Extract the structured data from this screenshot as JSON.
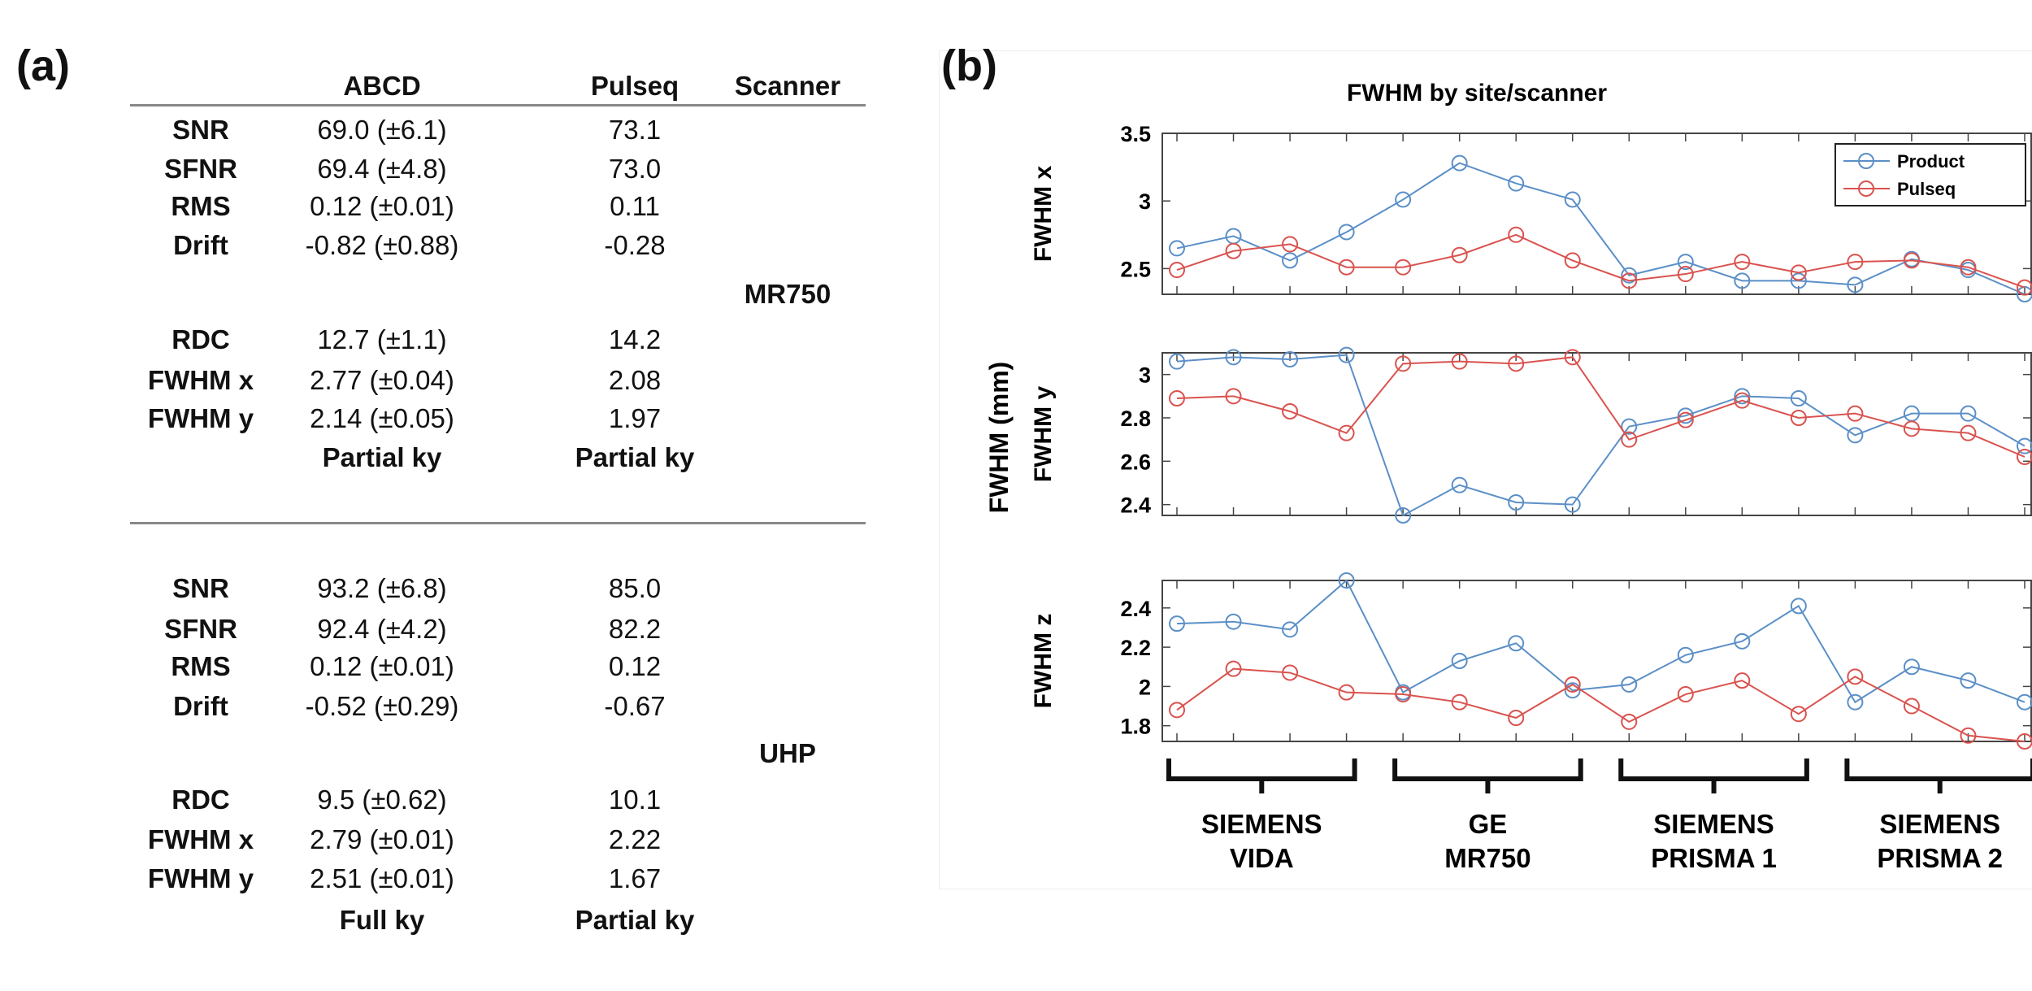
{
  "panel_a": {
    "label": "(a)",
    "headers": [
      "",
      "ABCD",
      "Pulseq",
      "Scanner"
    ],
    "sections": [
      {
        "scanner": "MR750",
        "rows_top": [
          {
            "metric": "SNR",
            "abcd": "69.0 (±6.1)",
            "pulseq": "73.1"
          },
          {
            "metric": "SFNR",
            "abcd": "69.4 (±4.8)",
            "pulseq": "73.0"
          },
          {
            "metric": "RMS",
            "abcd": "0.12 (±0.01)",
            "pulseq": "0.11"
          },
          {
            "metric": "Drift",
            "abcd": "-0.82 (±0.88)",
            "pulseq": "-0.28"
          }
        ],
        "rows_bottom": [
          {
            "metric": "RDC",
            "abcd": "12.7 (±1.1)",
            "pulseq": "14.2"
          },
          {
            "metric": "FWHM x",
            "abcd": "2.77 (±0.04)",
            "pulseq": "2.08"
          },
          {
            "metric": "FWHM y",
            "abcd": "2.14 (±0.05)",
            "pulseq": "1.97"
          }
        ],
        "sampling": {
          "abcd": "Partial ky",
          "pulseq": "Partial ky"
        }
      },
      {
        "scanner": "UHP",
        "rows_top": [
          {
            "metric": "SNR",
            "abcd": "93.2 (±6.8)",
            "pulseq": "85.0"
          },
          {
            "metric": "SFNR",
            "abcd": "92.4 (±4.2)",
            "pulseq": "82.2"
          },
          {
            "metric": "RMS",
            "abcd": "0.12 (±0.01)",
            "pulseq": "0.12"
          },
          {
            "metric": "Drift",
            "abcd": "-0.52 (±0.29)",
            "pulseq": "-0.67"
          }
        ],
        "rows_bottom": [
          {
            "metric": "RDC",
            "abcd": "9.5 (±0.62)",
            "pulseq": "10.1"
          },
          {
            "metric": "FWHM x",
            "abcd": "2.79 (±0.01)",
            "pulseq": "2.22"
          },
          {
            "metric": "FWHM y",
            "abcd": "2.51 (±0.01)",
            "pulseq": "1.67"
          }
        ],
        "sampling": {
          "abcd": "Full ky",
          "pulseq": "Partial ky"
        }
      }
    ]
  },
  "panel_b": {
    "label": "(b)"
  },
  "chart_data": {
    "type": "line",
    "title": "FWHM by site/scanner",
    "shared_ylabel": "FWHM (mm)",
    "colors": {
      "Product": "#5b8fc7",
      "Pulseq": "#d9534f"
    },
    "legend": {
      "position": "top-right",
      "entries": [
        "Product",
        "Pulseq"
      ]
    },
    "marker": "circle",
    "grid": false,
    "groups": [
      {
        "line1": "SIEMENS",
        "line2": "VIDA"
      },
      {
        "line1": "GE",
        "line2": "MR750"
      },
      {
        "line1": "SIEMENS",
        "line2": "PRISMA 1"
      },
      {
        "line1": "SIEMENS",
        "line2": "PRISMA 2"
      }
    ],
    "points_per_group": 4,
    "panels": [
      {
        "ylabel": "FWHM x",
        "ylim": [
          2.31,
          3.5
        ],
        "yticks": [
          "3.5",
          "3",
          "2.5"
        ],
        "ytick_values": [
          3.5,
          3.0,
          2.5
        ],
        "series": [
          {
            "name": "Product",
            "values": [
              2.65,
              2.74,
              2.56,
              2.77,
              3.01,
              3.28,
              3.13,
              3.01,
              2.45,
              2.55,
              2.41,
              2.41,
              2.38,
              2.57,
              2.49,
              2.31
            ]
          },
          {
            "name": "Pulseq",
            "values": [
              2.49,
              2.63,
              2.68,
              2.51,
              2.51,
              2.6,
              2.75,
              2.56,
              2.41,
              2.46,
              2.55,
              2.47,
              2.55,
              2.56,
              2.51,
              2.36
            ]
          }
        ]
      },
      {
        "ylabel": "FWHM y",
        "ylim": [
          2.35,
          3.1
        ],
        "yticks": [
          "3",
          "2.8",
          "2.6",
          "2.4"
        ],
        "ytick_values": [
          3.0,
          2.8,
          2.6,
          2.4
        ],
        "series": [
          {
            "name": "Product",
            "values": [
              3.06,
              3.08,
              3.07,
              3.09,
              2.35,
              2.49,
              2.41,
              2.4,
              2.76,
              2.81,
              2.9,
              2.89,
              2.72,
              2.82,
              2.82,
              2.67
            ]
          },
          {
            "name": "Pulseq",
            "values": [
              2.89,
              2.9,
              2.83,
              2.73,
              3.05,
              3.06,
              3.05,
              3.08,
              2.7,
              2.79,
              2.88,
              2.8,
              2.82,
              2.75,
              2.73,
              2.62
            ]
          }
        ]
      },
      {
        "ylabel": "FWHM z",
        "ylim": [
          1.72,
          2.54
        ],
        "yticks": [
          "2.4",
          "2.2",
          "2",
          "1.8"
        ],
        "ytick_values": [
          2.4,
          2.2,
          2.0,
          1.8
        ],
        "series": [
          {
            "name": "Product",
            "values": [
              2.32,
              2.33,
              2.29,
              2.54,
              1.97,
              2.13,
              2.22,
              1.98,
              2.01,
              2.16,
              2.23,
              2.41,
              1.92,
              2.1,
              2.03,
              1.92
            ]
          },
          {
            "name": "Pulseq",
            "values": [
              1.88,
              2.09,
              2.07,
              1.97,
              1.96,
              1.92,
              1.84,
              2.01,
              1.82,
              1.96,
              2.03,
              1.86,
              2.05,
              1.9,
              1.75,
              1.72
            ]
          }
        ]
      }
    ]
  }
}
